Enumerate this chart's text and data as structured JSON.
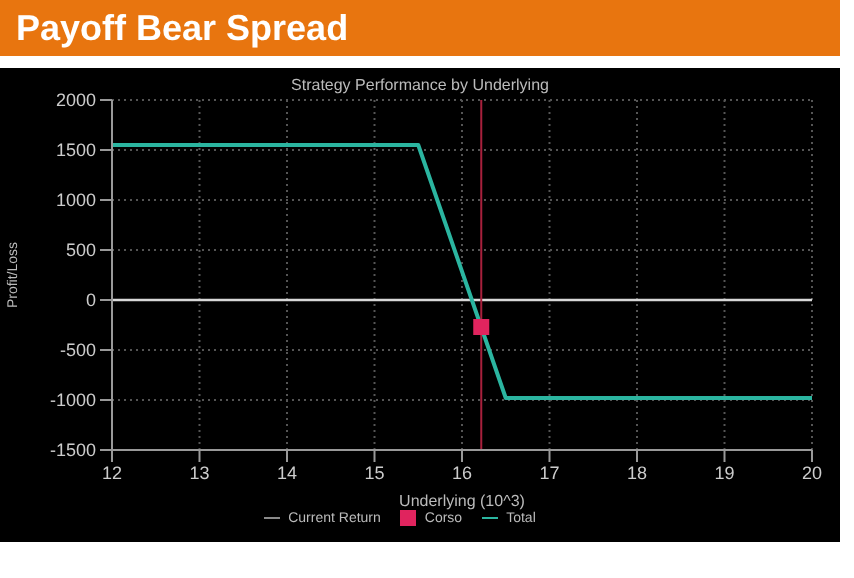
{
  "chart_data": {
    "type": "line",
    "title": "Payoff Bear Spread",
    "subtitle": "Strategy Performance by Underlying",
    "xlabel": "Underlying (10^3)",
    "ylabel": "Profit/Loss",
    "xlim": [
      12,
      20
    ],
    "xticks": [
      12,
      13,
      14,
      15,
      16,
      17,
      18,
      19,
      20
    ],
    "ylim": [
      -1500,
      2000
    ],
    "yticks": [
      -1500,
      -1000,
      -500,
      0,
      500,
      1000,
      1500,
      2000
    ],
    "grid": true,
    "legend": "bottom",
    "line_style": "solid",
    "marker": "none",
    "ref_lines": [
      {
        "axis": "y",
        "value": 0,
        "color": "#d8d8d8"
      },
      {
        "axis": "x",
        "value": 16.22,
        "color": "#a8203c"
      }
    ],
    "series": [
      {
        "name": "Current Return",
        "color": "#8a8a8a"
      },
      {
        "name": "Corso",
        "type": "scatter",
        "marker": "square",
        "color": "#e0245e",
        "x": [
          16.22
        ],
        "values": [
          -270
        ]
      },
      {
        "name": "Total",
        "color": "#2bb5a0",
        "x": [
          12,
          15.5,
          16.5,
          20
        ],
        "values": [
          1550,
          1550,
          -980,
          -980
        ]
      }
    ]
  }
}
